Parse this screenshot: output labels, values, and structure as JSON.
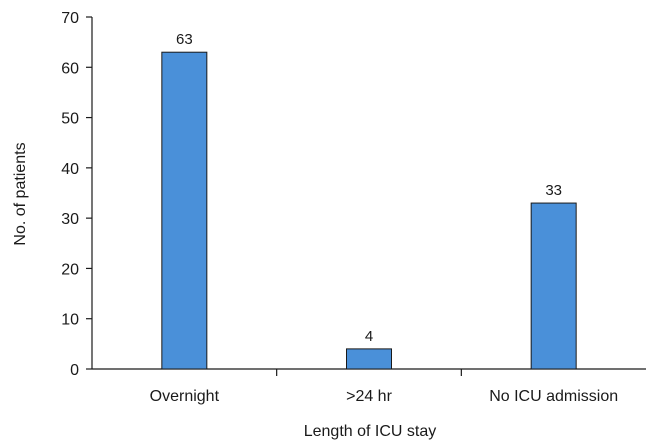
{
  "chart_data": {
    "type": "bar",
    "categories": [
      "Overnight",
      ">24 hr",
      "No ICU admission"
    ],
    "values": [
      63,
      4,
      33
    ],
    "data_labels": [
      "63",
      "4",
      "33"
    ],
    "title": "",
    "xlabel": "Length of ICU stay",
    "ylabel": "No. of patients",
    "ylim": [
      0,
      70
    ],
    "yticks": [
      0,
      10,
      20,
      30,
      40,
      50,
      60,
      70
    ],
    "ytick_labels": [
      "0",
      "10",
      "20",
      "30",
      "40",
      "50",
      "60",
      "70"
    ],
    "grid": false,
    "legend": "none",
    "bar_color": "#4a90d9",
    "bar_edge_color": "#1a1a1a"
  }
}
